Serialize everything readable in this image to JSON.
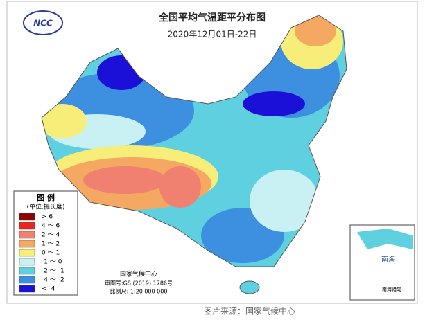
{
  "header": {
    "logo": "NCC",
    "title": "全国平均气温距平分布图",
    "subtitle": "2020年12月01日-22日"
  },
  "legend": {
    "title": "图 例",
    "unit": "(单位:摄氏度)",
    "items": [
      {
        "label": "> 6",
        "color": "#8b0000"
      },
      {
        "label": "4 ～ 6",
        "color": "#e8261c"
      },
      {
        "label": "2 ～ 4",
        "color": "#f08070"
      },
      {
        "label": "1 ～ 2",
        "color": "#f5a862"
      },
      {
        "label": "0 ～ 1",
        "color": "#f7ee7a"
      },
      {
        "label": "-1 ～ 0",
        "color": "#c9f0f2"
      },
      {
        "label": "-2 ～ -1",
        "color": "#5fd0e0"
      },
      {
        "label": "-4 ～ -2",
        "color": "#3d8fe0"
      },
      {
        "label": "< -4",
        "color": "#1a10d8"
      }
    ]
  },
  "footer": {
    "org": "国家气候中心",
    "approval": "审图号:GS (2019) 1786号",
    "scale": "比例尺: 1:20 000 000"
  },
  "inset": {
    "sea": "南海",
    "caption": "南海诸岛"
  },
  "caption": "图片来源：国家气候中心"
}
